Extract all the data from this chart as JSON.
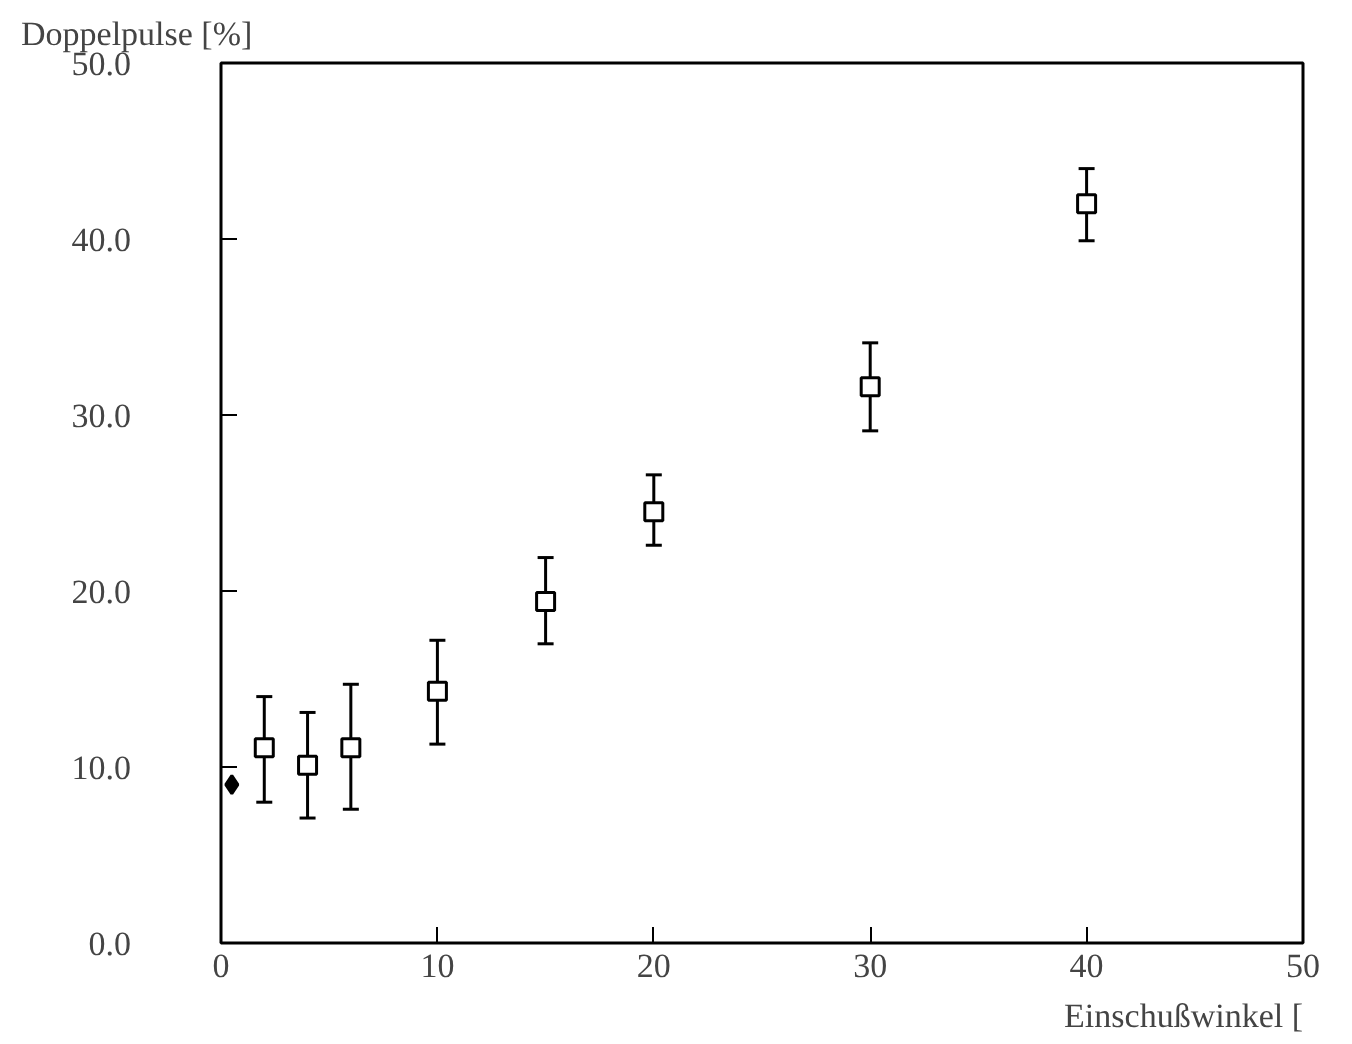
{
  "chart_data": {
    "type": "scatter",
    "xlabel": "Einschußwinkel [",
    "ylabel": "Doppelpulse [%]",
    "xlim": [
      0,
      50
    ],
    "ylim": [
      0,
      50
    ],
    "xticks": [
      0,
      10,
      20,
      30,
      40,
      50
    ],
    "yticks": [
      {
        "value": 0,
        "label": "0.0"
      },
      {
        "value": 10,
        "label": "10.0"
      },
      {
        "value": 20,
        "label": "20.0"
      },
      {
        "value": 30,
        "label": "30.0"
      },
      {
        "value": 40,
        "label": "40.0"
      },
      {
        "value": 50,
        "label": "50.0"
      }
    ],
    "grid": false,
    "series": [
      {
        "color": "#000000",
        "marker": "square",
        "x": [
          2,
          4,
          6,
          10,
          15,
          20,
          30,
          40
        ],
        "values": [
          11.1,
          10.1,
          11.1,
          14.3,
          19.4,
          24.5,
          31.6,
          42.0
        ],
        "errors": [
          [
            8.0,
            14.0
          ],
          [
            7.1,
            13.1
          ],
          [
            7.6,
            14.7
          ],
          [
            11.3,
            17.2
          ],
          [
            17.0,
            21.9
          ],
          [
            22.6,
            26.6
          ],
          [
            29.1,
            34.1
          ],
          [
            39.9,
            44.0
          ]
        ]
      },
      {
        "color": "#000000",
        "marker": "diamond",
        "x": [
          0.5
        ],
        "values": [
          9.0
        ]
      }
    ]
  }
}
